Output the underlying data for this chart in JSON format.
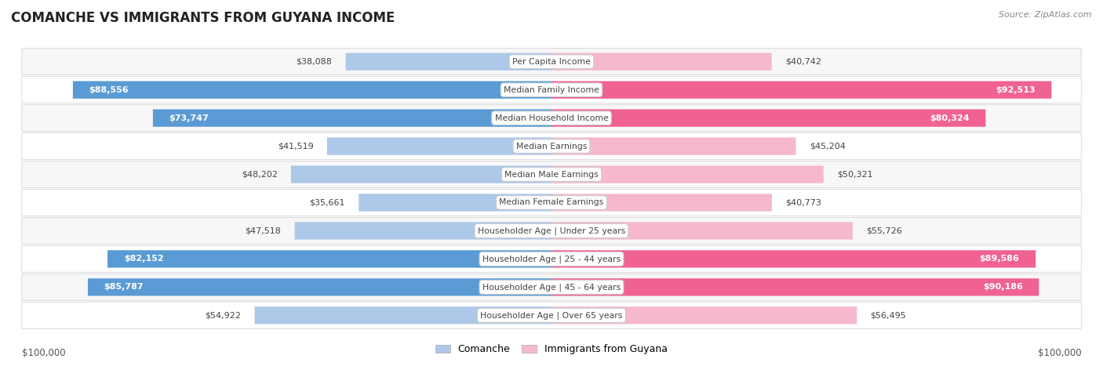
{
  "title": "COMANCHE VS IMMIGRANTS FROM GUYANA INCOME",
  "source": "Source: ZipAtlas.com",
  "categories": [
    "Per Capita Income",
    "Median Family Income",
    "Median Household Income",
    "Median Earnings",
    "Median Male Earnings",
    "Median Female Earnings",
    "Householder Age | Under 25 years",
    "Householder Age | 25 - 44 years",
    "Householder Age | 45 - 64 years",
    "Householder Age | Over 65 years"
  ],
  "comanche_values": [
    38088,
    88556,
    73747,
    41519,
    48202,
    35661,
    47518,
    82152,
    85787,
    54922
  ],
  "guyana_values": [
    40742,
    92513,
    80324,
    45204,
    50321,
    40773,
    55726,
    89586,
    90186,
    56495
  ],
  "comanche_labels": [
    "$38,088",
    "$88,556",
    "$73,747",
    "$41,519",
    "$48,202",
    "$35,661",
    "$47,518",
    "$82,152",
    "$85,787",
    "$54,922"
  ],
  "guyana_labels": [
    "$40,742",
    "$92,513",
    "$80,324",
    "$45,204",
    "$50,321",
    "$40,773",
    "$55,726",
    "$89,586",
    "$90,186",
    "$56,495"
  ],
  "max_value": 100000,
  "comanche_color_light": "#adc8e8",
  "comanche_color_dark": "#5b9bd5",
  "guyana_color_light": "#f5b8ce",
  "guyana_color_dark": "#f06292",
  "row_bg_colors": [
    "#f7f7f7",
    "#ffffff"
  ],
  "bar_height": 0.62,
  "legend_comanche": "Comanche",
  "legend_guyana": "Immigrants from Guyana",
  "xlabel_left": "$100,000",
  "xlabel_right": "$100,000",
  "label_threshold": 60000
}
